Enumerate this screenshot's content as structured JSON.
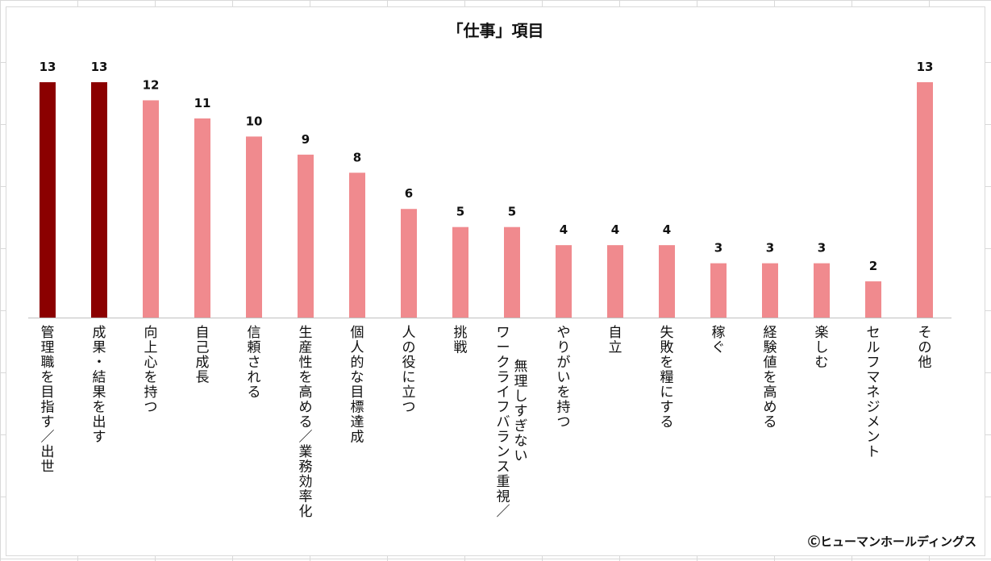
{
  "chart_data": {
    "type": "bar",
    "title": "「仕事」項目",
    "categories": [
      "管理職を目指す／出世",
      "成果・結果を出す",
      "向上心を持つ",
      "自己成長",
      "信頼される",
      "生産性を高める／業務効率化",
      "個人的な目標達成",
      "人の役に立つ",
      "挑戦",
      "無理しすぎない ワークライフバランス重視／",
      "やりがいを持つ",
      "自立",
      "失敗を糧にする",
      "稼ぐ",
      "経験値を高める",
      "楽しむ",
      "セルフマネジメント",
      "その他"
    ],
    "values": [
      13,
      13,
      12,
      11,
      10,
      9,
      8,
      6,
      5,
      5,
      4,
      4,
      4,
      3,
      3,
      3,
      2,
      13
    ],
    "bar_colors": [
      "#8b0000",
      "#8b0000",
      "#f08a8e",
      "#f08a8e",
      "#f08a8e",
      "#f08a8e",
      "#f08a8e",
      "#f08a8e",
      "#f08a8e",
      "#f08a8e",
      "#f08a8e",
      "#f08a8e",
      "#f08a8e",
      "#f08a8e",
      "#f08a8e",
      "#f08a8e",
      "#f08a8e",
      "#f08a8e"
    ],
    "ylim": [
      0,
      13
    ],
    "grid": false,
    "legend": "none",
    "data_labels": true
  },
  "copyright": "Ⓒヒューマンホールディングス"
}
